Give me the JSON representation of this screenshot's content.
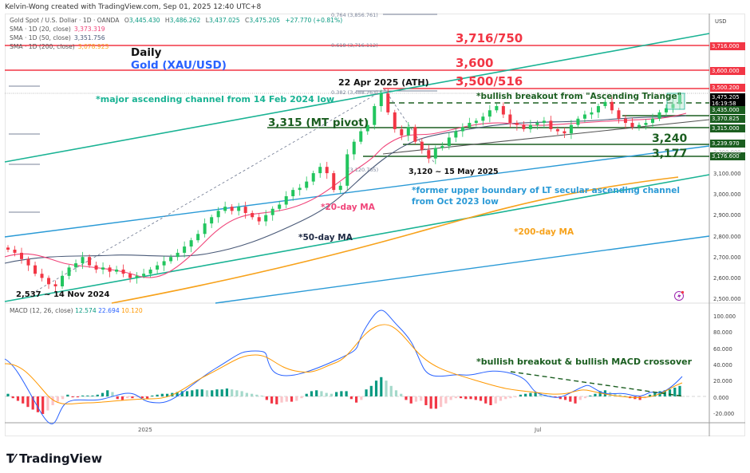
{
  "header": {
    "credit": "Kelvin-Wong created with TradingView.com, Sep 01, 2025 12:40 UTC+8"
  },
  "legend": {
    "symbol": "Gold Spot / U.S. Dollar · 1D · OANDA",
    "open_label": "O",
    "open": "3,445.430",
    "high_label": "H",
    "high": "3,486.262",
    "low_label": "L",
    "low": "3,437.025",
    "close_label": "C",
    "close": "3,475.205",
    "change": "+27.770 (+0.81%)",
    "sma20_label": "SMA · 1D (20, close)",
    "sma20": "3,373.319",
    "sma50_label": "SMA · 1D (50, close)",
    "sma50": "3,351.756",
    "sma200_label": "SMA · 1D (200, close)",
    "sma200": "3,078.923"
  },
  "macd_legend": {
    "label": "MACD (12, 26, close)",
    "hist": "12.574",
    "macd": "22.694",
    "signal": "10.120"
  },
  "price_axis": {
    "currency": "USD",
    "ticks": [
      "3,100.000",
      "3,000.000",
      "2,900.000",
      "2,800.000",
      "2,700.000",
      "2,600.000",
      "2,500.000"
    ],
    "badges": [
      {
        "label": "3,716.000",
        "color": "#f23645"
      },
      {
        "label": "3,600.000",
        "color": "#f23645"
      },
      {
        "label": "3,500.200",
        "color": "#f23645"
      },
      {
        "label": "3,475.205",
        "sub": "16:19:58",
        "color": "#000000"
      },
      {
        "label": "3,435.000",
        "color": "#1b5e20"
      },
      {
        "label": "3,370.825",
        "color": "#1b5e20"
      },
      {
        "label": "3,315.000",
        "color": "#1b5e20"
      },
      {
        "label": "3,239.970",
        "color": "#1b5e20"
      },
      {
        "label": "3,176.600",
        "color": "#1b5e20"
      }
    ],
    "faded_tick": "3,200.000"
  },
  "macd_axis": {
    "ticks": [
      "100.000",
      "80.000",
      "60.000",
      "40.000",
      "20.000",
      "0.000",
      "-20.000"
    ]
  },
  "time_axis": {
    "labels": [
      "2025",
      "Jul"
    ]
  },
  "annotations": {
    "title_daily": "Daily",
    "title_gold": "Gold (XAU/USD)",
    "fib_0764": "0.764 (3,856.761)",
    "fib_0618": "0.618 (3,716.112)",
    "fib_0382": "0.382 (3,488.763)",
    "fib_low": "(3,120.765)",
    "level_3716": "3,716/750",
    "level_3600": "3,600",
    "level_3500": "3,500/516",
    "ath": "22 Apr 2025 (ATH)",
    "channel_note": "*major ascending channel from 14 Feb 2024 low",
    "breakout_note": "*bullish breakout from \"Ascending Triange\"",
    "mt_pivot": "3,315 (MT pivot)",
    "level_3240": "3,240",
    "level_3177": "3,177",
    "may_low": "3,120 ~ 15 May 2025",
    "former_boundary_1": "*former upper boundary of LT secular ascending channel",
    "former_boundary_2": "from Oct 2023 low",
    "ma20": "*20-day MA",
    "ma50": "*50-day MA",
    "ma200": "*200-day MA",
    "nov_low": "2,537 ~ 14 Nov 2024",
    "macd_note": "*bullish breakout & bullish MACD crossover"
  },
  "footer": {
    "brand": "TradingView"
  },
  "colors": {
    "up": "#089981",
    "up_candle": "#22c55e",
    "down": "#f23645",
    "sma20": "#f0457a",
    "sma50": "#4a5a78",
    "sma200": "#f7a21b",
    "channel": "#1ab394",
    "lt_channel": "#2a9ad6",
    "support": "#1b5e20",
    "macd": "#2962ff",
    "signal": "#ff9800"
  },
  "chart_data": {
    "type": "candlestick",
    "title": "Gold (XAU/USD) Daily",
    "instrument": "Gold Spot / U.S. Dollar · 1D · OANDA",
    "ohlc_last": {
      "open": 3445.43,
      "high": 3486.262,
      "low": 3437.025,
      "close": 3475.205,
      "change": 27.77,
      "change_pct": 0.81
    },
    "y_axis": {
      "label": "USD",
      "range": [
        2480,
        3900
      ],
      "ticks": [
        2500,
        2600,
        2700,
        2800,
        2900,
        3000,
        3100,
        3200
      ]
    },
    "x_axis": {
      "labels": [
        "2025",
        "Jul"
      ],
      "range": "Oct 2024 – Sep 2025"
    },
    "indicators": {
      "sma20": 3373.319,
      "sma50": 3351.756,
      "sma200": 3078.923,
      "macd": {
        "params": "12, 26, close",
        "histogram": 12.574,
        "macd": 22.694,
        "signal": 10.12,
        "y_ticks": [
          -20,
          0,
          20,
          40,
          60,
          80,
          100
        ]
      }
    },
    "horizontal_levels": [
      {
        "label": "0.764 fib",
        "value": 3856.761
      },
      {
        "label": "3,716/750 (0.618 fib)",
        "value": 3716.112
      },
      {
        "label": "3,600",
        "value": 3600
      },
      {
        "label": "3,500/516",
        "value": 3500.2
      },
      {
        "label": "0.382 fib",
        "value": 3488.763
      },
      {
        "label": "Ascending triangle top",
        "value": 3435
      },
      {
        "label": "3,370.825",
        "value": 3370.825
      },
      {
        "label": "3,315 MT pivot",
        "value": 3315
      },
      {
        "label": "3,240",
        "value": 3239.97
      },
      {
        "label": "3,177",
        "value": 3176.6
      }
    ],
    "key_points": [
      {
        "label": "2,537 ~ 14 Nov 2024",
        "value": 2537
      },
      {
        "label": "22 Apr 2025 ATH",
        "value": 3500
      },
      {
        "label": "3,120 ~ 15 May 2025",
        "value": 3120
      }
    ],
    "approx_closes": [
      2735,
      2720,
      2690,
      2660,
      2620,
      2600,
      2570,
      2560,
      2610,
      2650,
      2670,
      2700,
      2660,
      2640,
      2650,
      2630,
      2640,
      2620,
      2600,
      2610,
      2620,
      2640,
      2660,
      2680,
      2700,
      2720,
      2750,
      2780,
      2810,
      2860,
      2890,
      2920,
      2940,
      2920,
      2940,
      2910,
      2890,
      2870,
      2900,
      2930,
      2950,
      2990,
      3020,
      3030,
      3060,
      3100,
      3130,
      3100,
      3020,
      3040,
      3190,
      3250,
      3300,
      3330,
      3420,
      3480,
      3390,
      3310,
      3280,
      3320,
      3250,
      3210,
      3170,
      3220,
      3230,
      3270,
      3300,
      3320,
      3340,
      3350,
      3370,
      3400,
      3420,
      3380,
      3340,
      3330,
      3310,
      3330,
      3340,
      3350,
      3310,
      3300,
      3290,
      3330,
      3360,
      3380,
      3390,
      3420,
      3440,
      3400,
      3360,
      3340,
      3320,
      3330,
      3340,
      3360,
      3390,
      3410,
      3430,
      3475
    ]
  }
}
